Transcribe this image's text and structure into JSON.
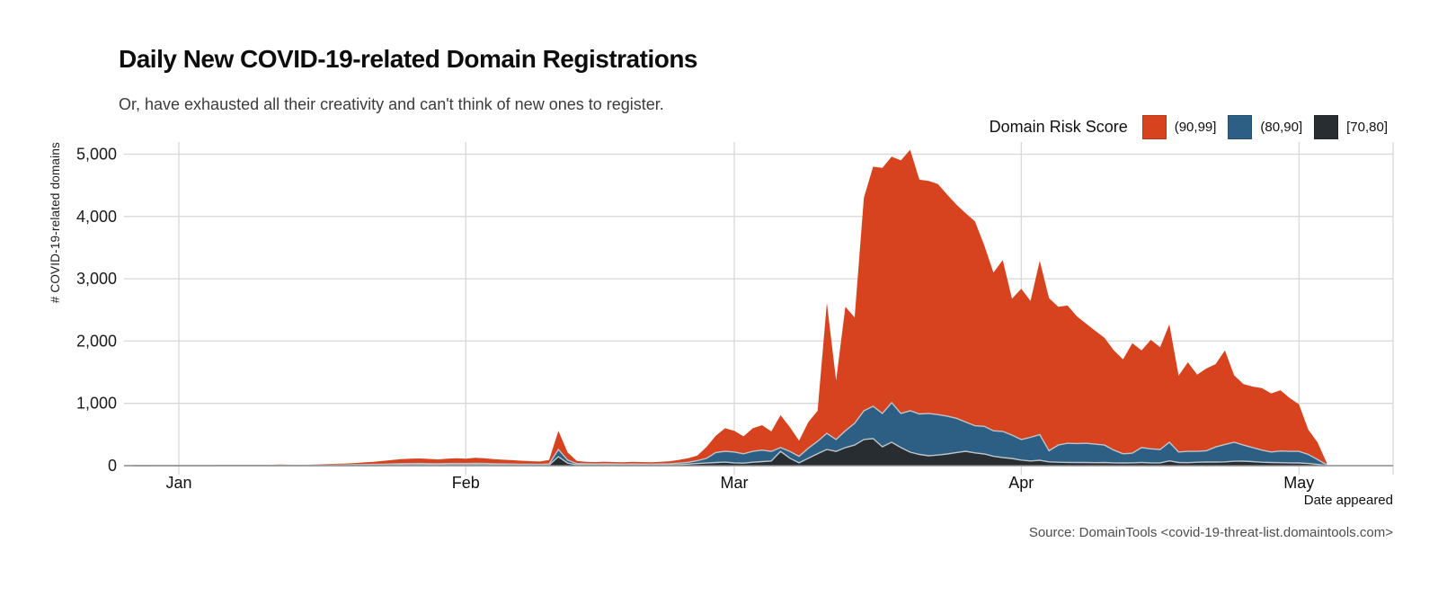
{
  "header": {
    "title": "Daily New COVID-19-related Domain Registrations",
    "subtitle": "Or, have exhausted all their creativity and can't think of new ones to register."
  },
  "legend": {
    "title": "Domain Risk Score",
    "items": [
      {
        "label": "(90,99]",
        "color": "#d8431f"
      },
      {
        "label": "(80,90]",
        "color": "#2d5f85"
      },
      {
        "label": "[70,80]",
        "color": "#282d31"
      }
    ]
  },
  "axes": {
    "ylabel": "# COVID-19-related domains",
    "xlabel": "Date appeared",
    "y_tick_labels": [
      "0",
      "1,000",
      "2,000",
      "3,000",
      "4,000",
      "5,000"
    ],
    "x_tick_labels": [
      "Jan",
      "Feb",
      "Mar",
      "Apr",
      "May"
    ]
  },
  "source": "Source: DomainTools <covid-19-threat-list.domaintools.com>",
  "chart_data": {
    "type": "area",
    "stacked": true,
    "title": "Daily New COVID-19-related Domain Registrations",
    "xlabel": "Date appeared",
    "ylabel": "# COVID-19-related domains",
    "ylim": [
      0,
      5000
    ],
    "y_ticks": [
      0,
      1000,
      2000,
      3000,
      4000,
      5000
    ],
    "x_ticks": [
      {
        "label": "Jan",
        "day": 0
      },
      {
        "label": "Feb",
        "day": 31
      },
      {
        "label": "Mar",
        "day": 60
      },
      {
        "label": "Apr",
        "day": 91
      },
      {
        "label": "May",
        "day": 121
      }
    ],
    "sampling": "daily",
    "start_day_offset_from_jan1": -5,
    "start_label": "Dec 27",
    "end_label": "May 4",
    "legend_title": "Domain Risk Score",
    "legend_position": "top-right",
    "grid": true,
    "series": [
      {
        "name": "[70,80]",
        "color": "#282d31",
        "values": [
          0,
          0,
          1,
          1,
          1,
          1,
          1,
          1,
          1,
          1,
          2,
          2,
          2,
          2,
          2,
          2,
          3,
          3,
          2,
          3,
          3,
          4,
          5,
          5,
          6,
          7,
          8,
          9,
          10,
          12,
          12,
          13,
          12,
          11,
          12,
          13,
          12,
          14,
          13,
          12,
          11,
          10,
          9,
          8,
          8,
          10,
          145,
          40,
          15,
          14,
          13,
          14,
          13,
          12,
          13,
          13,
          12,
          14,
          15,
          18,
          24,
          34,
          42,
          50,
          56,
          45,
          40,
          55,
          65,
          75,
          230,
          120,
          45,
          120,
          190,
          260,
          230,
          290,
          330,
          420,
          434,
          303,
          376,
          290,
          217,
          180,
          159,
          170,
          188,
          210,
          231,
          205,
          188,
          150,
          130,
          116,
          90,
          75,
          87,
          60,
          55,
          52,
          50,
          50,
          48,
          50,
          45,
          43,
          45,
          50,
          45,
          45,
          77,
          50,
          48,
          55,
          58,
          58,
          60,
          70,
          72,
          65,
          55,
          50,
          48,
          45,
          43,
          35,
          20,
          5
        ]
      },
      {
        "name": "(80,90]",
        "color": "#2d5f85",
        "values": [
          1,
          1,
          1,
          1,
          1,
          1,
          1,
          1,
          1,
          2,
          2,
          2,
          3,
          2,
          2,
          3,
          3,
          3,
          2,
          3,
          4,
          5,
          6,
          7,
          8,
          10,
          12,
          14,
          17,
          20,
          21,
          22,
          20,
          19,
          21,
          22,
          21,
          23,
          22,
          19,
          17,
          16,
          14,
          13,
          12,
          18,
          115,
          50,
          18,
          15,
          14,
          15,
          14,
          13,
          14,
          13,
          13,
          14,
          16,
          22,
          30,
          45,
          75,
          160,
          175,
          175,
          150,
          175,
          185,
          155,
          60,
          110,
          105,
          160,
          200,
          260,
          190,
          270,
          350,
          460,
          520,
          535,
          636,
          548,
          665,
          650,
          679,
          650,
          607,
          550,
          469,
          435,
          442,
          410,
          420,
          374,
          330,
          380,
          413,
          180,
          275,
          308,
          305,
          310,
          297,
          280,
          205,
          147,
          155,
          240,
          225,
          215,
          298,
          170,
          182,
          175,
          182,
          242,
          280,
          305,
          258,
          225,
          195,
          170,
          187,
          185,
          187,
          145,
          80,
          10
        ]
      },
      {
        "name": "(90,99]",
        "color": "#d8431f",
        "values": [
          1,
          1,
          1,
          1,
          2,
          3,
          4,
          4,
          3,
          5,
          6,
          8,
          10,
          8,
          6,
          9,
          12,
          9,
          8,
          9,
          13,
          16,
          19,
          23,
          28,
          35,
          42,
          52,
          63,
          73,
          79,
          81,
          76,
          70,
          79,
          83,
          79,
          88,
          83,
          74,
          67,
          62,
          57,
          51,
          46,
          64,
          300,
          120,
          42,
          33,
          31,
          34,
          31,
          30,
          33,
          31,
          30,
          33,
          39,
          52,
          66,
          81,
          183,
          270,
          369,
          340,
          280,
          370,
          400,
          320,
          520,
          390,
          250,
          420,
          490,
          2095,
          950,
          1990,
          1700,
          3420,
          3846,
          3942,
          3948,
          4062,
          4188,
          3760,
          3732,
          3700,
          3555,
          3430,
          3350,
          3280,
          2910,
          2540,
          2750,
          2190,
          2420,
          2190,
          2790,
          2450,
          2220,
          2210,
          2045,
          1920,
          1820,
          1720,
          1600,
          1515,
          1765,
          1560,
          1750,
          1640,
          1895,
          1225,
          1430,
          1230,
          1320,
          1330,
          1510,
          1075,
          980,
          980,
          995,
          940,
          975,
          855,
          755,
          400,
          275,
          30
        ]
      }
    ]
  }
}
